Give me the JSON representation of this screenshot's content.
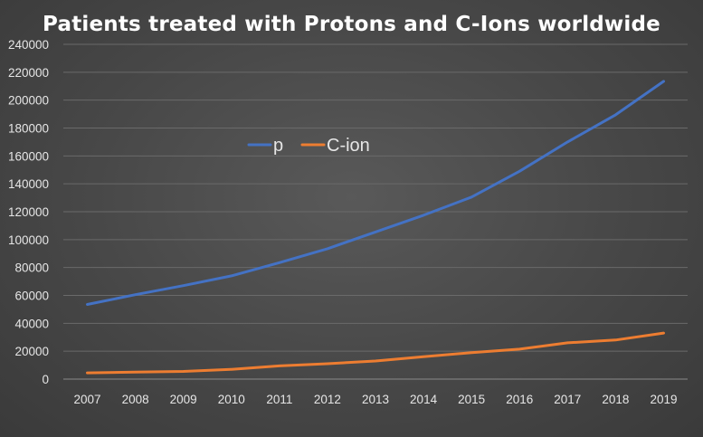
{
  "chart_data": {
    "type": "line",
    "title": "Patients treated with Protons and C-Ions worldwide",
    "xlabel": "",
    "ylabel": "",
    "x": [
      "2007",
      "2008",
      "2009",
      "2010",
      "2011",
      "2012",
      "2013",
      "2014",
      "2015",
      "2016",
      "2017",
      "2018",
      "2019"
    ],
    "ylim": [
      0,
      240000
    ],
    "yticks": [
      0,
      20000,
      40000,
      60000,
      80000,
      100000,
      120000,
      140000,
      160000,
      180000,
      200000,
      220000,
      240000
    ],
    "grid": true,
    "legend_position": "top-left inside plot",
    "series": [
      {
        "name": "p",
        "color": "#4472C4",
        "values": [
          53500,
          60500,
          67000,
          74000,
          83500,
          93500,
          105500,
          117500,
          130500,
          149000,
          170000,
          189500,
          213500
        ]
      },
      {
        "name": "C-ion",
        "color": "#ED7D31",
        "values": [
          4500,
          5000,
          5500,
          7000,
          9500,
          11000,
          13000,
          16000,
          19000,
          21500,
          26000,
          28000,
          33000
        ]
      }
    ]
  }
}
